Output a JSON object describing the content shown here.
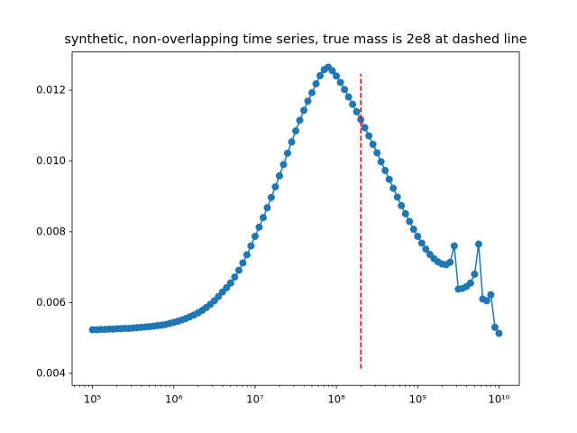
{
  "chart_data": {
    "type": "line",
    "title": "synthetic, non-overlapping time series, true mass is 2e8 at dashed line",
    "log_x": true,
    "xlim": [
      56234,
      17780000000.0
    ],
    "ylim": [
      0.00366,
      0.01308
    ],
    "xticks": [
      {
        "value": 100000.0,
        "label": "10⁵"
      },
      {
        "value": 1000000.0,
        "label": "10⁶"
      },
      {
        "value": 10000000.0,
        "label": "10⁷"
      },
      {
        "value": 100000000.0,
        "label": "10⁸"
      },
      {
        "value": 1000000000.0,
        "label": "10⁹"
      },
      {
        "value": 10000000000.0,
        "label": "10¹⁰"
      }
    ],
    "yticks": [
      0.004,
      0.006,
      0.008,
      {
        "value": 0.01,
        "label": "0.010"
      },
      0.012
    ],
    "x": [
      100000.0,
      112200.0,
      125900.0,
      141300.0,
      158500.0,
      177800.0,
      199500.0,
      223900.0,
      251200.0,
      281800.0,
      316200.0,
      354800.0,
      398100.0,
      446700.0,
      501200.0,
      562300.0,
      631000.0,
      707900.0,
      794300.0,
      891300.0,
      1000000.0,
      1122000.0,
      1259000.0,
      1413000.0,
      1585000.0,
      1778000.0,
      1995000.0,
      2239000.0,
      2512000.0,
      2818000.0,
      3162000.0,
      3548000.0,
      3981000.0,
      4467000.0,
      5012000.0,
      5623000.0,
      6310000.0,
      7079000.0,
      7943000.0,
      8913000.0,
      10000000.0,
      11220000.0,
      12590000.0,
      14130000.0,
      15850000.0,
      17780000.0,
      19950000.0,
      22390000.0,
      25120000.0,
      28180000.0,
      31620000.0,
      35480000.0,
      39810000.0,
      44670000.0,
      50120000.0,
      56230000.0,
      63100000.0,
      70790000.0,
      79430000.0,
      89130000.0,
      100000000.0,
      112200000.0,
      125900000.0,
      141300000.0,
      158500000.0,
      177800000.0,
      199500000.0,
      223900000.0,
      251200000.0,
      281800000.0,
      316200000.0,
      354800000.0,
      398100000.0,
      446700000.0,
      501200000.0,
      562300000.0,
      631000000.0,
      707900000.0,
      794300000.0,
      891300000.0,
      1000000000.0,
      1122000000.0,
      1259000000.0,
      1413000000.0,
      1585000000.0,
      1778000000.0,
      1995000000.0,
      2239000000.0,
      2512000000.0,
      2818000000.0,
      3162000000.0,
      3548000000.0,
      3981000000.0,
      4467000000.0,
      5012000000.0,
      5623000000.0,
      6310000000.0,
      7079000000.0,
      7943000000.0,
      8913000000.0,
      10000000000.0
    ],
    "series": [
      {
        "color": "#1f77b4",
        "values": [
          0.00523,
          0.00523,
          0.00524,
          0.00524,
          0.00525,
          0.00525,
          0.00526,
          0.00526,
          0.00527,
          0.00527,
          0.00528,
          0.00529,
          0.0053,
          0.00531,
          0.00532,
          0.00533,
          0.00535,
          0.00536,
          0.00538,
          0.00541,
          0.00544,
          0.00547,
          0.00551,
          0.00555,
          0.0056,
          0.00565,
          0.00571,
          0.00578,
          0.00586,
          0.00595,
          0.00605,
          0.00617,
          0.0063,
          0.00642,
          0.00655,
          0.00672,
          0.00691,
          0.00712,
          0.00735,
          0.0076,
          0.00787,
          0.00813,
          0.0084,
          0.00868,
          0.00897,
          0.00927,
          0.00958,
          0.0099,
          0.01022,
          0.01054,
          0.01085,
          0.01115,
          0.01143,
          0.01169,
          0.01193,
          0.01218,
          0.01241,
          0.01258,
          0.01265,
          0.01255,
          0.0124,
          0.01222,
          0.01202,
          0.01181,
          0.0116,
          0.01139,
          0.01117,
          0.01094,
          0.01071,
          0.01047,
          0.01023,
          0.00998,
          0.00973,
          0.00948,
          0.00923,
          0.00898,
          0.00874,
          0.00851,
          0.00829,
          0.00807,
          0.00787,
          0.00768,
          0.00751,
          0.00736,
          0.00724,
          0.00715,
          0.00709,
          0.00707,
          0.00714,
          0.0076,
          0.00638,
          0.0064,
          0.00645,
          0.00655,
          0.0068,
          0.00765,
          0.0061,
          0.00605,
          0.00622,
          0.0053,
          0.00513
        ]
      }
    ],
    "vline": {
      "x": 200000000.0,
      "ymin": 0.00413,
      "ymax": 0.01246,
      "color": "#ff0000"
    }
  }
}
